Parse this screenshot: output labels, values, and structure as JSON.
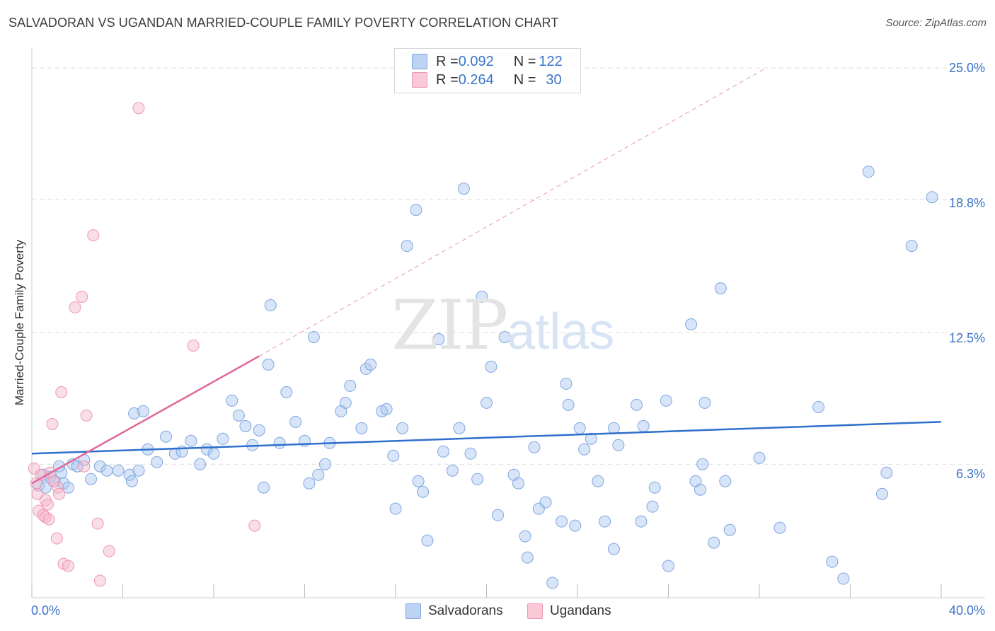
{
  "title": "SALVADORAN VS UGANDAN MARRIED-COUPLE FAMILY POVERTY CORRELATION CHART",
  "source": "Source: ZipAtlas.com",
  "watermark": {
    "zip": "ZIP",
    "atlas": "atlas"
  },
  "legend_top": {
    "rows": [
      {
        "r_label": "R = ",
        "r_value": "0.092",
        "n_label": "N = ",
        "n_value": "122"
      },
      {
        "r_label": "R = ",
        "r_value": "0.264",
        "n_label": "N = ",
        "n_value": "30"
      }
    ]
  },
  "colors": {
    "blue_fill": "#a9c6ef",
    "blue_stroke": "#7ea7e0",
    "blue_line": "#2f6fcc",
    "pink_fill": "#f5b5c9",
    "pink_stroke": "#ef97b3",
    "pink_line": "#e0679a",
    "tick_text": "#3b74c9",
    "grid": "#dddddd"
  },
  "chart_data": {
    "type": "scatter",
    "title": "SALVADORAN VS UGANDAN MARRIED-COUPLE FAMILY POVERTY CORRELATION CHART",
    "xlabel": "",
    "ylabel": "Married-Couple Family Poverty",
    "xlim": [
      0,
      40
    ],
    "ylim": [
      0,
      25.6
    ],
    "x_tick_labels": [
      "0.0%",
      "40.0%"
    ],
    "y_ticks": [
      6.3,
      12.5,
      18.8,
      25.0
    ],
    "y_tick_labels": [
      "6.3%",
      "12.5%",
      "18.8%",
      "25.0%"
    ],
    "grid": true,
    "legend_position": "bottom",
    "series": [
      {
        "name": "Salvadorans",
        "r": 0.092,
        "n": 122,
        "trend": {
          "x": [
            0,
            40
          ],
          "y": [
            6.8,
            8.3
          ]
        },
        "points": [
          [
            0.3,
            5.3
          ],
          [
            0.5,
            5.8
          ],
          [
            0.6,
            5.2
          ],
          [
            0.8,
            5.7
          ],
          [
            1.0,
            5.5
          ],
          [
            1.2,
            6.2
          ],
          [
            1.4,
            5.4
          ],
          [
            1.6,
            5.2
          ],
          [
            1.8,
            6.3
          ],
          [
            2.0,
            6.2
          ],
          [
            2.3,
            6.5
          ],
          [
            2.6,
            5.6
          ],
          [
            3.0,
            6.2
          ],
          [
            3.3,
            6.0
          ],
          [
            3.8,
            6.0
          ],
          [
            4.3,
            5.8
          ],
          [
            4.5,
            8.7
          ],
          [
            4.9,
            8.8
          ],
          [
            4.4,
            5.5
          ],
          [
            4.7,
            6.0
          ],
          [
            5.1,
            7.0
          ],
          [
            5.5,
            6.4
          ],
          [
            5.9,
            7.6
          ],
          [
            6.3,
            6.8
          ],
          [
            6.6,
            6.9
          ],
          [
            7.0,
            7.4
          ],
          [
            7.4,
            6.3
          ],
          [
            7.7,
            7.0
          ],
          [
            8.0,
            6.8
          ],
          [
            8.4,
            7.5
          ],
          [
            8.8,
            9.3
          ],
          [
            9.1,
            8.6
          ],
          [
            9.4,
            8.1
          ],
          [
            9.7,
            7.2
          ],
          [
            10.0,
            7.9
          ],
          [
            10.2,
            5.2
          ],
          [
            10.4,
            11.0
          ],
          [
            10.5,
            13.8
          ],
          [
            10.9,
            7.3
          ],
          [
            11.2,
            9.7
          ],
          [
            11.6,
            8.3
          ],
          [
            12.0,
            7.4
          ],
          [
            12.2,
            5.4
          ],
          [
            12.4,
            12.3
          ],
          [
            12.6,
            5.8
          ],
          [
            12.9,
            6.3
          ],
          [
            13.1,
            7.3
          ],
          [
            13.6,
            8.8
          ],
          [
            13.8,
            9.2
          ],
          [
            14.0,
            10.0
          ],
          [
            14.5,
            8.0
          ],
          [
            14.7,
            10.8
          ],
          [
            14.9,
            11.0
          ],
          [
            15.4,
            8.8
          ],
          [
            15.6,
            8.9
          ],
          [
            15.9,
            6.7
          ],
          [
            16.0,
            4.2
          ],
          [
            16.3,
            8.0
          ],
          [
            16.5,
            16.6
          ],
          [
            16.9,
            18.3
          ],
          [
            17.0,
            5.5
          ],
          [
            17.2,
            5.0
          ],
          [
            17.4,
            2.7
          ],
          [
            17.9,
            12.2
          ],
          [
            18.1,
            6.9
          ],
          [
            18.5,
            6.0
          ],
          [
            18.8,
            8.0
          ],
          [
            19.0,
            19.3
          ],
          [
            19.3,
            6.8
          ],
          [
            19.6,
            5.6
          ],
          [
            19.8,
            14.2
          ],
          [
            20.0,
            9.2
          ],
          [
            20.2,
            10.9
          ],
          [
            20.5,
            3.9
          ],
          [
            20.8,
            12.3
          ],
          [
            21.2,
            5.8
          ],
          [
            21.4,
            5.4
          ],
          [
            21.7,
            2.9
          ],
          [
            21.8,
            1.9
          ],
          [
            22.1,
            7.1
          ],
          [
            22.3,
            4.2
          ],
          [
            22.6,
            4.5
          ],
          [
            22.9,
            0.7
          ],
          [
            23.3,
            3.6
          ],
          [
            23.5,
            10.1
          ],
          [
            23.6,
            9.1
          ],
          [
            23.9,
            3.4
          ],
          [
            24.1,
            8.0
          ],
          [
            24.3,
            7.0
          ],
          [
            24.6,
            7.5
          ],
          [
            24.9,
            5.5
          ],
          [
            25.2,
            3.6
          ],
          [
            25.6,
            2.3
          ],
          [
            25.6,
            8.0
          ],
          [
            25.8,
            7.2
          ],
          [
            26.6,
            9.1
          ],
          [
            26.8,
            3.6
          ],
          [
            26.9,
            8.1
          ],
          [
            27.3,
            4.3
          ],
          [
            27.4,
            5.2
          ],
          [
            27.9,
            9.3
          ],
          [
            28.0,
            1.5
          ],
          [
            29.0,
            12.9
          ],
          [
            29.2,
            5.5
          ],
          [
            29.4,
            5.1
          ],
          [
            29.5,
            6.3
          ],
          [
            29.6,
            9.2
          ],
          [
            30.0,
            2.6
          ],
          [
            30.3,
            14.6
          ],
          [
            30.5,
            5.5
          ],
          [
            30.7,
            3.2
          ],
          [
            32.0,
            6.6
          ],
          [
            32.9,
            3.3
          ],
          [
            34.6,
            9.0
          ],
          [
            35.2,
            1.7
          ],
          [
            35.7,
            0.9
          ],
          [
            36.8,
            20.1
          ],
          [
            37.4,
            4.9
          ],
          [
            37.6,
            5.9
          ],
          [
            38.7,
            16.6
          ],
          [
            39.6,
            18.9
          ],
          [
            1.3,
            5.9
          ]
        ]
      },
      {
        "name": "Ugandans",
        "r": 0.264,
        "n": 30,
        "trend": {
          "x": [
            0,
            10.0
          ],
          "y": [
            5.4,
            11.4
          ]
        },
        "trend_ext": {
          "x": [
            10.0,
            32.3
          ],
          "y": [
            11.4,
            25.0
          ]
        },
        "points": [
          [
            0.1,
            6.1
          ],
          [
            0.2,
            5.4
          ],
          [
            0.25,
            4.9
          ],
          [
            0.3,
            4.1
          ],
          [
            0.4,
            5.8
          ],
          [
            0.5,
            3.9
          ],
          [
            0.6,
            4.6
          ],
          [
            0.6,
            3.8
          ],
          [
            0.7,
            4.4
          ],
          [
            0.75,
            3.7
          ],
          [
            0.8,
            5.9
          ],
          [
            0.9,
            8.2
          ],
          [
            0.95,
            5.5
          ],
          [
            1.1,
            2.8
          ],
          [
            1.15,
            5.2
          ],
          [
            1.2,
            4.9
          ],
          [
            1.3,
            9.7
          ],
          [
            1.4,
            1.6
          ],
          [
            1.6,
            1.5
          ],
          [
            1.9,
            13.7
          ],
          [
            2.2,
            14.2
          ],
          [
            2.4,
            8.6
          ],
          [
            2.3,
            6.2
          ],
          [
            2.7,
            17.1
          ],
          [
            2.9,
            3.5
          ],
          [
            3.0,
            0.8
          ],
          [
            3.4,
            2.2
          ],
          [
            4.7,
            23.1
          ],
          [
            7.1,
            11.9
          ],
          [
            9.8,
            3.4
          ]
        ]
      }
    ]
  },
  "bottom_legend": [
    {
      "label": "Salvadorans"
    },
    {
      "label": "Ugandans"
    }
  ]
}
